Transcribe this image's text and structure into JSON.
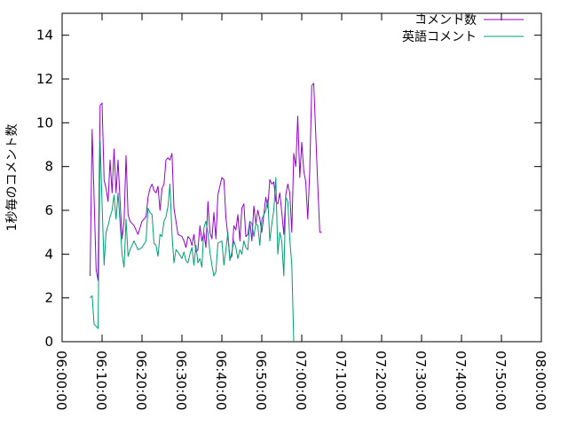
{
  "chart_data": {
    "type": "line",
    "ylabel": "1秒毎のコメント数",
    "xlabel": "",
    "xlim": [
      "06:00:00",
      "08:00:00"
    ],
    "ylim": [
      0,
      15
    ],
    "x_ticks": [
      "06:00:00",
      "06:10:00",
      "06:20:00",
      "06:30:00",
      "06:40:00",
      "06:50:00",
      "07:00:00",
      "07:10:00",
      "07:20:00",
      "07:30:00",
      "07:40:00",
      "07:50:00",
      "08:00:00"
    ],
    "y_ticks": [
      0,
      2,
      4,
      6,
      8,
      10,
      12,
      14
    ],
    "grid": false,
    "legend_position": "top-right",
    "series": [
      {
        "name": "コメント数",
        "color": "#9400d3",
        "points": [
          [
            "06:07:00",
            3.0
          ],
          [
            "06:07:30",
            9.7
          ],
          [
            "06:08:00",
            6.6
          ],
          [
            "06:08:30",
            3.3
          ],
          [
            "06:09:00",
            2.8
          ],
          [
            "06:09:30",
            10.8
          ],
          [
            "06:10:00",
            10.9
          ],
          [
            "06:10:30",
            7.4
          ],
          [
            "06:11:00",
            7.0
          ],
          [
            "06:11:30",
            6.4
          ],
          [
            "06:12:00",
            8.3
          ],
          [
            "06:12:30",
            6.8
          ],
          [
            "06:13:00",
            8.8
          ],
          [
            "06:13:30",
            6.8
          ],
          [
            "06:14:00",
            8.3
          ],
          [
            "06:14:30",
            6.4
          ],
          [
            "06:15:00",
            4.7
          ],
          [
            "06:15:30",
            5.5
          ],
          [
            "06:16:00",
            8.5
          ],
          [
            "06:16:30",
            5.8
          ],
          [
            "06:17:00",
            5.5
          ],
          [
            "06:18:00",
            5.3
          ],
          [
            "06:19:00",
            4.9
          ],
          [
            "06:20:00",
            5.5
          ],
          [
            "06:21:00",
            5.7
          ],
          [
            "06:21:30",
            6.6
          ],
          [
            "06:22:00",
            7.0
          ],
          [
            "06:22:30",
            7.2
          ],
          [
            "06:23:00",
            6.9
          ],
          [
            "06:23:30",
            6.8
          ],
          [
            "06:24:00",
            7.1
          ],
          [
            "06:24:30",
            6.0
          ],
          [
            "06:25:00",
            7.0
          ],
          [
            "06:25:30",
            7.2
          ],
          [
            "06:26:00",
            8.3
          ],
          [
            "06:26:30",
            8.4
          ],
          [
            "06:27:00",
            8.3
          ],
          [
            "06:27:30",
            8.6
          ],
          [
            "06:28:00",
            6.1
          ],
          [
            "06:28:30",
            5.5
          ],
          [
            "06:29:00",
            4.9
          ],
          [
            "06:30:00",
            4.8
          ],
          [
            "06:30:30",
            4.6
          ],
          [
            "06:31:00",
            4.3
          ],
          [
            "06:31:30",
            4.8
          ],
          [
            "06:32:00",
            4.7
          ],
          [
            "06:32:30",
            4.4
          ],
          [
            "06:33:00",
            4.9
          ],
          [
            "06:33:30",
            4.1
          ],
          [
            "06:34:00",
            4.2
          ],
          [
            "06:34:30",
            5.3
          ],
          [
            "06:35:00",
            4.6
          ],
          [
            "06:35:30",
            5.0
          ],
          [
            "06:36:00",
            4.3
          ],
          [
            "06:36:30",
            6.4
          ],
          [
            "06:37:00",
            5.0
          ],
          [
            "06:37:30",
            4.7
          ],
          [
            "06:38:00",
            5.9
          ],
          [
            "06:38:30",
            4.7
          ],
          [
            "06:39:00",
            6.7
          ],
          [
            "06:40:00",
            7.5
          ],
          [
            "06:40:30",
            7.4
          ],
          [
            "06:41:00",
            5.7
          ],
          [
            "06:41:30",
            4.8
          ],
          [
            "06:42:00",
            3.8
          ],
          [
            "06:42:30",
            3.9
          ],
          [
            "06:43:00",
            5.3
          ],
          [
            "06:43:30",
            5.1
          ],
          [
            "06:44:00",
            5.8
          ],
          [
            "06:44:30",
            4.6
          ],
          [
            "06:45:00",
            6.1
          ],
          [
            "06:45:30",
            6.3
          ],
          [
            "06:46:00",
            4.8
          ],
          [
            "06:46:30",
            4.9
          ],
          [
            "06:47:00",
            5.5
          ],
          [
            "06:47:30",
            4.6
          ],
          [
            "06:48:00",
            6.2
          ],
          [
            "06:48:30",
            5.4
          ],
          [
            "06:49:00",
            6.0
          ],
          [
            "06:49:30",
            5.6
          ],
          [
            "06:50:00",
            5.0
          ],
          [
            "06:51:00",
            6.6
          ],
          [
            "06:51:30",
            6.1
          ],
          [
            "06:52:00",
            7.4
          ],
          [
            "06:52:30",
            7.2
          ],
          [
            "06:53:00",
            7.3
          ],
          [
            "06:53:30",
            6.4
          ],
          [
            "06:54:00",
            6.3
          ],
          [
            "06:54:30",
            6.8
          ],
          [
            "06:55:00",
            5.9
          ],
          [
            "06:55:30",
            4.9
          ],
          [
            "06:56:00",
            6.7
          ],
          [
            "06:56:30",
            7.2
          ],
          [
            "06:57:00",
            6.8
          ],
          [
            "06:57:30",
            5.0
          ],
          [
            "06:58:00",
            8.6
          ],
          [
            "06:58:30",
            8.0
          ],
          [
            "06:59:00",
            10.3
          ],
          [
            "06:59:30",
            7.5
          ],
          [
            "07:00:00",
            9.1
          ],
          [
            "07:00:30",
            7.8
          ],
          [
            "07:01:00",
            7.3
          ],
          [
            "07:01:30",
            5.6
          ],
          [
            "07:02:00",
            7.8
          ],
          [
            "07:02:30",
            11.7
          ],
          [
            "07:03:00",
            11.8
          ],
          [
            "07:04:00",
            7.2
          ],
          [
            "07:04:30",
            5.0
          ],
          [
            "07:05:00",
            5.0
          ]
        ]
      },
      {
        "name": "英語コメント",
        "color": "#009e73",
        "points": [
          [
            "06:07:00",
            2.0
          ],
          [
            "06:07:30",
            2.1
          ],
          [
            "06:08:00",
            0.8
          ],
          [
            "06:08:30",
            0.7
          ],
          [
            "06:09:00",
            0.6
          ],
          [
            "06:09:30",
            9.2
          ],
          [
            "06:10:00",
            6.3
          ],
          [
            "06:10:30",
            3.5
          ],
          [
            "06:11:00",
            5.0
          ],
          [
            "06:11:30",
            5.3
          ],
          [
            "06:12:00",
            5.7
          ],
          [
            "06:12:30",
            6.0
          ],
          [
            "06:13:00",
            6.7
          ],
          [
            "06:13:30",
            5.6
          ],
          [
            "06:14:00",
            6.8
          ],
          [
            "06:14:30",
            5.4
          ],
          [
            "06:15:00",
            4.0
          ],
          [
            "06:15:30",
            3.4
          ],
          [
            "06:16:00",
            5.6
          ],
          [
            "06:16:30",
            3.9
          ],
          [
            "06:17:00",
            4.2
          ],
          [
            "06:18:00",
            4.6
          ],
          [
            "06:19:00",
            4.2
          ],
          [
            "06:20:00",
            4.3
          ],
          [
            "06:21:00",
            4.6
          ],
          [
            "06:21:30",
            6.1
          ],
          [
            "06:22:00",
            5.9
          ],
          [
            "06:22:30",
            5.8
          ],
          [
            "06:23:00",
            4.5
          ],
          [
            "06:23:30",
            4.4
          ],
          [
            "06:24:00",
            3.9
          ],
          [
            "06:24:30",
            4.9
          ],
          [
            "06:25:00",
            4.8
          ],
          [
            "06:25:30",
            5.5
          ],
          [
            "06:26:00",
            5.7
          ],
          [
            "06:26:30",
            6.2
          ],
          [
            "06:27:00",
            7.2
          ],
          [
            "06:27:30",
            4.9
          ],
          [
            "06:28:00",
            3.6
          ],
          [
            "06:28:30",
            4.2
          ],
          [
            "06:29:00",
            4.1
          ],
          [
            "06:30:00",
            3.8
          ],
          [
            "06:30:30",
            4.1
          ],
          [
            "06:31:00",
            3.7
          ],
          [
            "06:31:30",
            3.6
          ],
          [
            "06:32:00",
            4.0
          ],
          [
            "06:32:30",
            4.3
          ],
          [
            "06:33:00",
            3.5
          ],
          [
            "06:33:30",
            4.4
          ],
          [
            "06:34:00",
            3.6
          ],
          [
            "06:34:30",
            3.8
          ],
          [
            "06:35:00",
            3.4
          ],
          [
            "06:35:30",
            5.2
          ],
          [
            "06:36:00",
            5.5
          ],
          [
            "06:36:30",
            5.0
          ],
          [
            "06:37:00",
            4.1
          ],
          [
            "06:37:30",
            3.5
          ],
          [
            "06:38:00",
            3.0
          ],
          [
            "06:38:30",
            3.2
          ],
          [
            "06:39:00",
            4.5
          ],
          [
            "06:40:00",
            4.6
          ],
          [
            "06:40:30",
            3.5
          ],
          [
            "06:41:00",
            4.2
          ],
          [
            "06:41:30",
            5.0
          ],
          [
            "06:42:00",
            3.7
          ],
          [
            "06:42:30",
            4.1
          ],
          [
            "06:43:00",
            4.6
          ],
          [
            "06:43:30",
            4.3
          ],
          [
            "06:44:00",
            3.8
          ],
          [
            "06:44:30",
            4.2
          ],
          [
            "06:45:00",
            4.0
          ],
          [
            "06:45:30",
            4.6
          ],
          [
            "06:46:00",
            4.3
          ],
          [
            "06:46:30",
            4.2
          ],
          [
            "06:47:00",
            5.5
          ],
          [
            "06:47:30",
            5.4
          ],
          [
            "06:48:00",
            4.8
          ],
          [
            "06:48:30",
            5.4
          ],
          [
            "06:49:00",
            5.3
          ],
          [
            "06:49:30",
            4.4
          ],
          [
            "06:50:00",
            5.6
          ],
          [
            "06:51:00",
            6.0
          ],
          [
            "06:51:30",
            6.5
          ],
          [
            "06:52:00",
            4.6
          ],
          [
            "06:52:30",
            5.4
          ],
          [
            "06:53:00",
            6.0
          ],
          [
            "06:53:30",
            7.5
          ],
          [
            "06:54:00",
            4.0
          ],
          [
            "06:54:30",
            5.0
          ],
          [
            "06:55:00",
            4.6
          ],
          [
            "06:55:30",
            3.0
          ],
          [
            "06:56:00",
            6.6
          ],
          [
            "06:56:30",
            6.4
          ],
          [
            "06:57:00",
            4.7
          ],
          [
            "06:57:30",
            3.5
          ],
          [
            "06:58:00",
            0.0
          ]
        ]
      }
    ]
  }
}
